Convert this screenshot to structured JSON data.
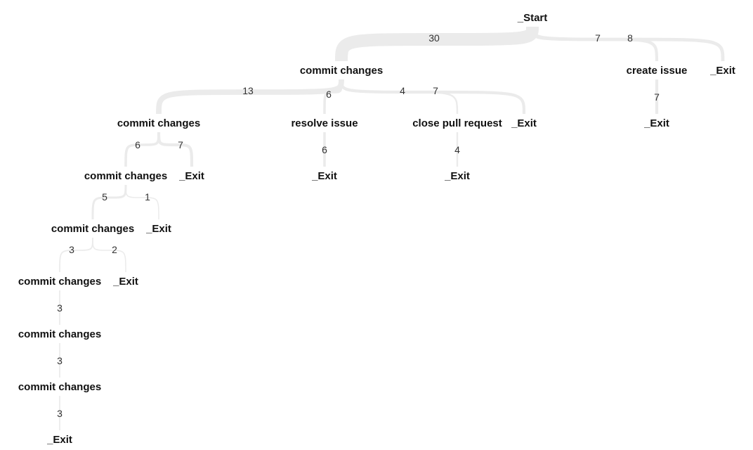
{
  "diagram": {
    "type": "flow-tree",
    "nodes": [
      {
        "id": "n0",
        "label": "_Start"
      },
      {
        "id": "n1",
        "label": "commit changes",
        "parent": "n0",
        "count": 30
      },
      {
        "id": "n2",
        "label": "create issue",
        "parent": "n0",
        "count": 7
      },
      {
        "id": "n3",
        "label": "_Exit",
        "parent": "n0",
        "count": 8
      },
      {
        "id": "n4",
        "label": "commit changes",
        "parent": "n1",
        "count": 13
      },
      {
        "id": "n5",
        "label": "resolve issue",
        "parent": "n1",
        "count": 6
      },
      {
        "id": "n6",
        "label": "close pull request",
        "parent": "n1",
        "count": 4
      },
      {
        "id": "n7",
        "label": "_Exit",
        "parent": "n1",
        "count": 7
      },
      {
        "id": "n8",
        "label": "_Exit",
        "parent": "n2",
        "count": 7
      },
      {
        "id": "n9",
        "label": "commit changes",
        "parent": "n4",
        "count": 6
      },
      {
        "id": "n10",
        "label": "_Exit",
        "parent": "n4",
        "count": 7
      },
      {
        "id": "n11",
        "label": "_Exit",
        "parent": "n5",
        "count": 6
      },
      {
        "id": "n12",
        "label": "_Exit",
        "parent": "n6",
        "count": 4
      },
      {
        "id": "n13",
        "label": "commit changes",
        "parent": "n9",
        "count": 5
      },
      {
        "id": "n14",
        "label": "_Exit",
        "parent": "n9",
        "count": 1
      },
      {
        "id": "n15",
        "label": "commit changes",
        "parent": "n13",
        "count": 3
      },
      {
        "id": "n16",
        "label": "_Exit",
        "parent": "n13",
        "count": 2
      },
      {
        "id": "n17",
        "label": "commit changes",
        "parent": "n15",
        "count": 3
      },
      {
        "id": "n18",
        "label": "commit changes",
        "parent": "n17",
        "count": 3
      },
      {
        "id": "n19",
        "label": "_Exit",
        "parent": "n18",
        "count": 3
      }
    ]
  }
}
